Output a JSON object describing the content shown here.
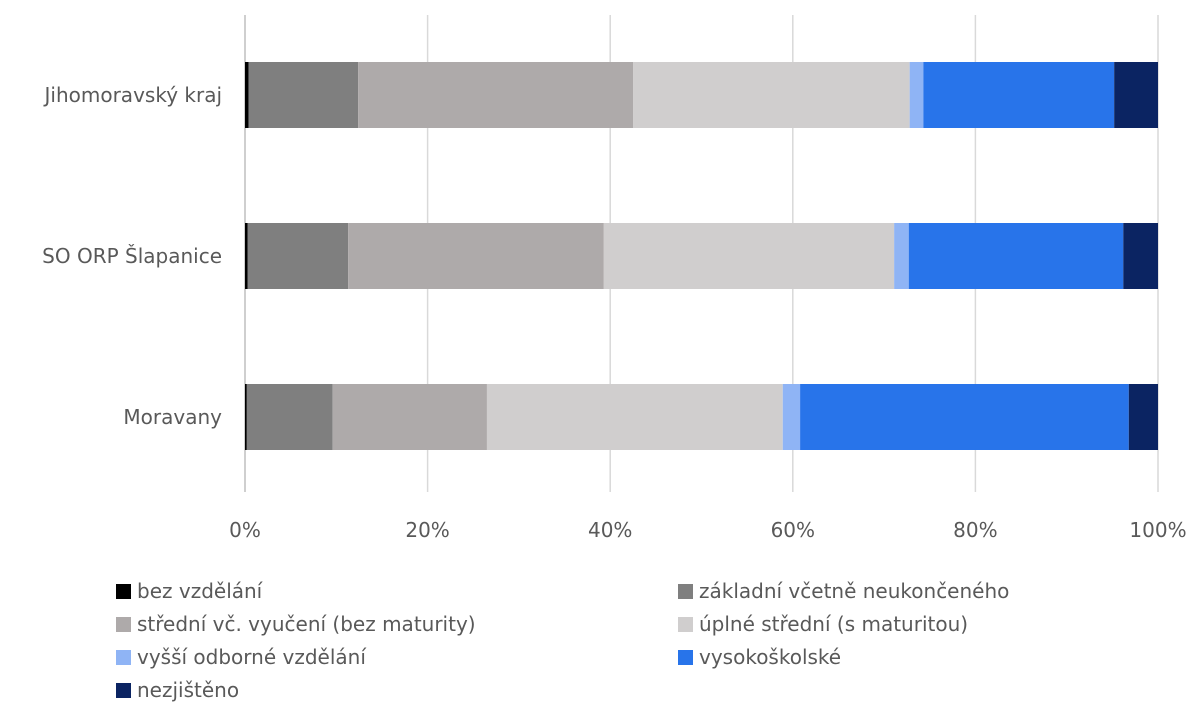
{
  "chart_data": {
    "type": "bar",
    "orientation": "horizontal",
    "stacked": "percent",
    "categories": [
      "Jihomoravský kraj",
      "SO ORP Šlapanice",
      "Moravany"
    ],
    "xlim": [
      0,
      100
    ],
    "x_ticks": [
      "0%",
      "20%",
      "40%",
      "60%",
      "80%",
      "100%"
    ],
    "grid": true,
    "legend_position": "bottom",
    "series": [
      {
        "name": "bez vzdělání",
        "color": "#000000",
        "values": [
          0.4,
          0.3,
          0.2
        ]
      },
      {
        "name": "základní včetně neukončeného",
        "color": "#7f7f7f",
        "values": [
          12.0,
          11.0,
          9.4
        ]
      },
      {
        "name": "střední vč. vyučení (bez maturity)",
        "color": "#aeaaaa",
        "values": [
          30.1,
          28.0,
          16.9
        ]
      },
      {
        "name": "úplné střední (s maturitou)",
        "color": "#d0cece",
        "values": [
          30.3,
          31.8,
          32.4
        ]
      },
      {
        "name": "vyšší odborné vzdělání",
        "color": "#8fb4f5",
        "values": [
          1.5,
          1.6,
          1.9
        ]
      },
      {
        "name": "vysokoškolské",
        "color": "#2874ea",
        "values": [
          20.9,
          23.5,
          36.0
        ]
      },
      {
        "name": "nezjištěno",
        "color": "#0b2462",
        "values": [
          4.8,
          3.8,
          3.2
        ]
      }
    ]
  }
}
